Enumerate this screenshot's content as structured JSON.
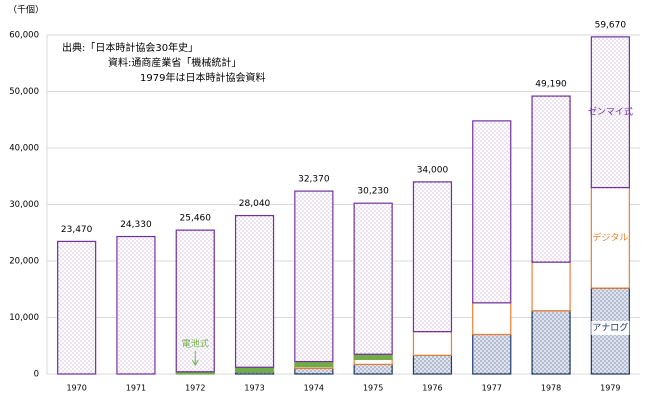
{
  "chart_data": {
    "type": "stacked_bar",
    "unit_label": "（千個）",
    "source_notes": [
      "出典:「日本時計協会30年史」",
      "資料:通商産業省「機械統計」",
      "1979年は日本時計協会資料"
    ],
    "categories": [
      "1970",
      "1971",
      "1972",
      "1973",
      "1974",
      "1975",
      "1976",
      "1977",
      "1978",
      "1979"
    ],
    "series": [
      {
        "name": "アナログ",
        "color": "#1f3864",
        "values": [
          0,
          0,
          0,
          300,
          1000,
          1700,
          3300,
          7000,
          11200,
          15200
        ]
      },
      {
        "name": "デジタル",
        "color": "#ed7d31",
        "values": [
          0,
          0,
          0,
          0,
          300,
          900,
          4200,
          5600,
          8600,
          17800
        ]
      },
      {
        "name": "電池式",
        "color": "#70ad47",
        "values": [
          0,
          0,
          400,
          900,
          900,
          900,
          0,
          0,
          0,
          0
        ]
      },
      {
        "name": "ゼンマイ式",
        "color": "#7030a0",
        "values": [
          23470,
          24330,
          25060,
          26840,
          30170,
          26730,
          26500,
          32200,
          29390,
          26670
        ]
      }
    ],
    "totals": {
      "values": [
        23470,
        24330,
        25460,
        28040,
        32370,
        30230,
        34000,
        44800,
        49190,
        59670
      ],
      "value_labels": [
        "23,470",
        "24,330",
        "25,460",
        "28,040",
        "32,370",
        "30,230",
        "34,000",
        null,
        "49,190",
        "59,670"
      ]
    },
    "ylim": [
      0,
      60000
    ],
    "yticks": [
      0,
      {
        "value": 10000,
        "label": "10,000"
      },
      {
        "value": 20000,
        "label": "20,000"
      },
      {
        "value": 30000,
        "label": "30,000"
      },
      {
        "value": 40000,
        "label": "40,000"
      },
      {
        "value": 50000,
        "label": "50,000"
      },
      {
        "value": 60000,
        "label": "60,000"
      }
    ],
    "grid": true
  }
}
